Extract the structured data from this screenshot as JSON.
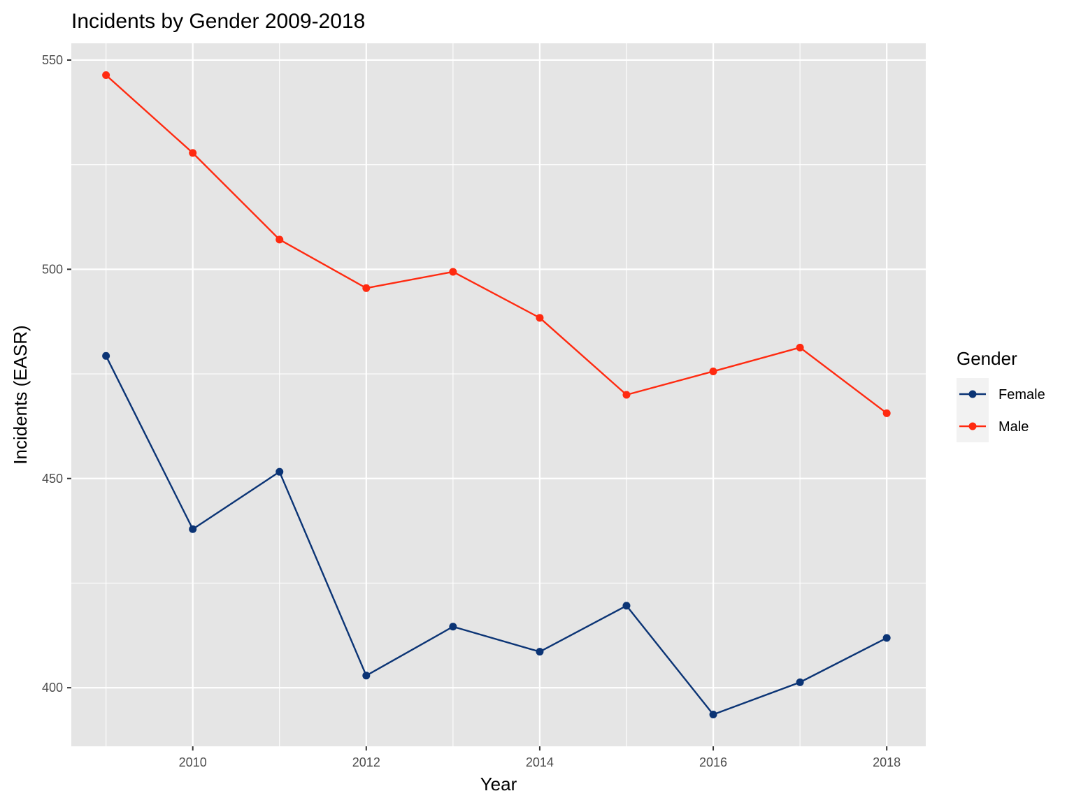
{
  "chart_data": {
    "type": "line",
    "title": "Incidents by Gender 2009-2018",
    "xlabel": "Year",
    "ylabel": "Incidents (EASR)",
    "x": [
      2009,
      2010,
      2011,
      2012,
      2013,
      2014,
      2015,
      2016,
      2017,
      2018
    ],
    "x_ticks": [
      2010,
      2012,
      2014,
      2016,
      2018
    ],
    "y_ticks": [
      400,
      450,
      500,
      550
    ],
    "xlim": [
      2008.6,
      2018.45
    ],
    "ylim": [
      386,
      554
    ],
    "grid": true,
    "legend": {
      "title": "Gender",
      "position": "right"
    },
    "series": [
      {
        "name": "Female",
        "color": "#0b3475",
        "values": [
          479.3,
          437.9,
          451.6,
          402.9,
          414.6,
          408.6,
          419.6,
          393.6,
          401.3,
          411.9
        ]
      },
      {
        "name": "Male",
        "color": "#ff2a10",
        "values": [
          546.4,
          527.8,
          507.1,
          495.5,
          499.4,
          488.4,
          470.0,
          475.6,
          481.3,
          465.6
        ]
      }
    ]
  }
}
